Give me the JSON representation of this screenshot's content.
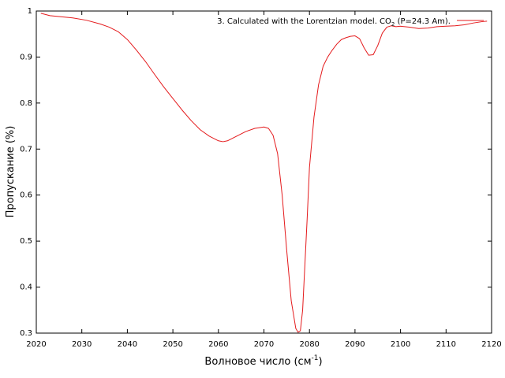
{
  "chart_data": {
    "type": "line",
    "xlabel": "Волновое число (см",
    "xlabel_superscript": "-1",
    "xlabel_suffix": ")",
    "ylabel": "Пропускание (%)",
    "xlim": [
      2020,
      2120
    ],
    "ylim": [
      0.3,
      1.0
    ],
    "x_ticks": [
      2020,
      2030,
      2040,
      2050,
      2060,
      2070,
      2080,
      2090,
      2100,
      2110,
      2120
    ],
    "y_ticks": [
      0.3,
      0.4,
      0.5,
      0.6,
      0.7,
      0.8,
      0.9,
      1.0
    ],
    "y_tick_labels": [
      "0.3",
      "0.4",
      "0.5",
      "0.6",
      "0.7",
      "0.8",
      "0.9",
      "1"
    ],
    "grid": false,
    "legend_position": "top-right",
    "series": [
      {
        "name": "3. Calculated with the Lorentzian model. CO2 (P=24.3 Am).",
        "legend_prefix": "3. Calculated with the Lorentzian model. CO",
        "legend_subscript": "2",
        "legend_suffix": " (P=24.3 Am).",
        "color": "#e41a1c",
        "x": [
          2021,
          2023,
          2025,
          2028,
          2031,
          2034,
          2036,
          2038,
          2040,
          2042,
          2044,
          2046,
          2048,
          2050,
          2052,
          2054,
          2056,
          2058,
          2060,
          2061,
          2062,
          2064,
          2066,
          2068,
          2070,
          2071,
          2072,
          2073,
          2074,
          2075,
          2076,
          2077,
          2077.5,
          2078,
          2078.5,
          2079,
          2079.5,
          2080,
          2081,
          2082,
          2083,
          2084,
          2085,
          2086,
          2087,
          2088,
          2089,
          2090,
          2091,
          2092,
          2093,
          2094,
          2095,
          2096,
          2097,
          2098,
          2099,
          2100,
          2102,
          2104,
          2106,
          2108,
          2110,
          2112,
          2114,
          2116,
          2118,
          2119
        ],
        "y": [
          0.995,
          0.99,
          0.988,
          0.985,
          0.98,
          0.972,
          0.965,
          0.955,
          0.938,
          0.915,
          0.89,
          0.862,
          0.835,
          0.81,
          0.785,
          0.762,
          0.742,
          0.728,
          0.718,
          0.716,
          0.718,
          0.728,
          0.738,
          0.745,
          0.748,
          0.745,
          0.73,
          0.69,
          0.6,
          0.48,
          0.37,
          0.31,
          0.302,
          0.305,
          0.35,
          0.45,
          0.55,
          0.66,
          0.77,
          0.84,
          0.88,
          0.9,
          0.915,
          0.928,
          0.938,
          0.942,
          0.945,
          0.946,
          0.94,
          0.92,
          0.904,
          0.905,
          0.925,
          0.952,
          0.965,
          0.968,
          0.966,
          0.967,
          0.965,
          0.962,
          0.963,
          0.966,
          0.967,
          0.968,
          0.97,
          0.974,
          0.977,
          0.978
        ]
      }
    ]
  }
}
